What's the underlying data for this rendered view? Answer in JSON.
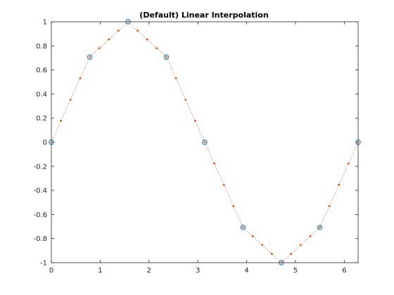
{
  "chart_data": {
    "type": "line",
    "title": "(Default) Linear Interpolation",
    "xlabel": "",
    "ylabel": "",
    "xlim": [
      0,
      6.2832
    ],
    "ylim": [
      -1,
      1
    ],
    "grid": false,
    "x_ticks": [
      0,
      1,
      2,
      3,
      4,
      5,
      6
    ],
    "x_tick_labels": [
      "0",
      "1",
      "2",
      "3",
      "4",
      "5",
      "6"
    ],
    "y_ticks": [
      1,
      0.8,
      0.6,
      0.4,
      0.2,
      0,
      -0.2,
      -0.4,
      -0.6,
      -0.8,
      -1
    ],
    "y_tick_labels": [
      "1",
      "0.8",
      "0.6",
      "0.4",
      "0.2",
      "0",
      "-0.2",
      "-0.4",
      "-0.6",
      "-0.8",
      "-1"
    ],
    "series": [
      {
        "marker": "circle",
        "line": "none",
        "color": "#0072bd",
        "x": [
          0,
          0.7854,
          1.5708,
          2.3562,
          3.1416,
          3.927,
          4.7124,
          5.4978,
          6.2832
        ],
        "y": [
          0,
          0.7071,
          1,
          0.7071,
          0,
          -0.7071,
          -1,
          -0.7071,
          0
        ]
      },
      {
        "marker": "dot",
        "line": "dotted",
        "color": "#d95319",
        "x": [
          0,
          0.1963,
          0.3927,
          0.589,
          0.7854,
          0.9817,
          1.1781,
          1.3744,
          1.5708,
          1.7671,
          1.9635,
          2.1598,
          2.3562,
          2.5525,
          2.7489,
          2.9452,
          3.1416,
          3.3379,
          3.5343,
          3.7306,
          3.927,
          4.1233,
          4.3197,
          4.516,
          4.7124,
          4.9087,
          5.1051,
          5.3014,
          5.4978,
          5.6941,
          5.8905,
          6.0868,
          6.2832
        ],
        "y": [
          0,
          0.1768,
          0.3536,
          0.5303,
          0.7071,
          0.7803,
          0.8536,
          0.9268,
          1,
          0.9268,
          0.8536,
          0.7803,
          0.7071,
          0.5303,
          0.3536,
          0.1768,
          0,
          -0.1768,
          -0.3536,
          -0.5303,
          -0.7071,
          -0.7803,
          -0.8536,
          -0.9268,
          -1,
          -0.9268,
          -0.8536,
          -0.7803,
          -0.7071,
          -0.5303,
          -0.3536,
          -0.1768,
          0
        ]
      }
    ]
  }
}
